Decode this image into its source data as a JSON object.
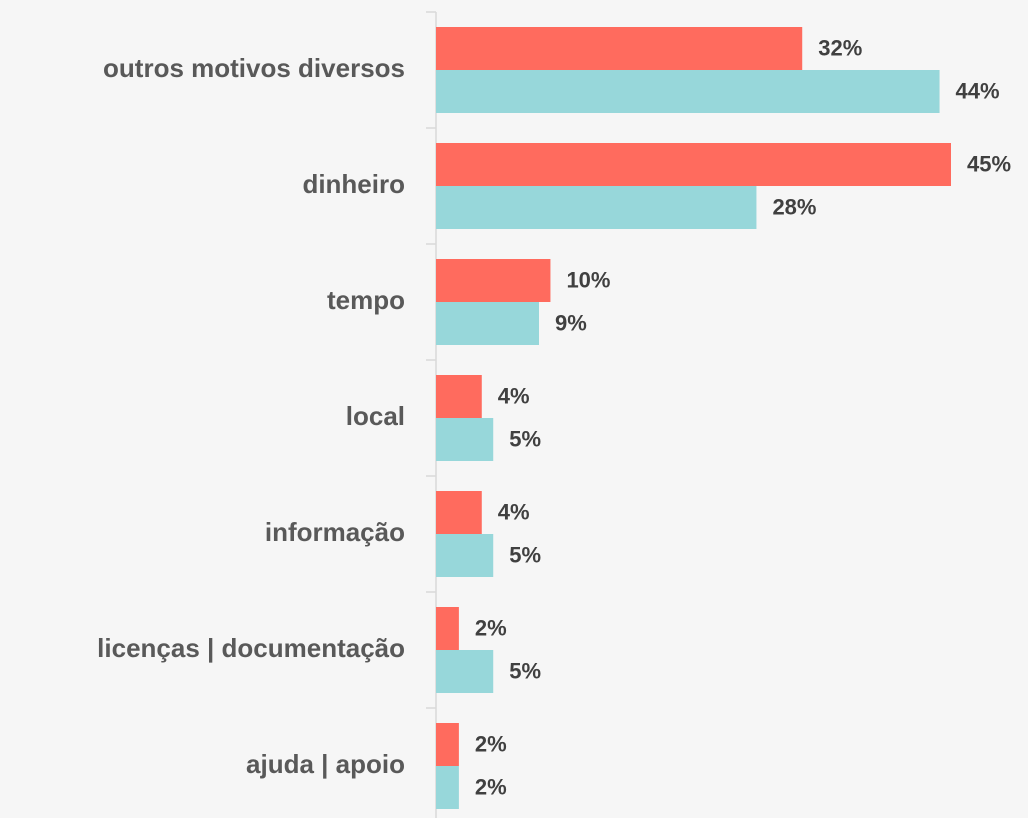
{
  "chart_data": {
    "type": "bar",
    "orientation": "horizontal",
    "categories": [
      "outros motivos diversos",
      "dinheiro",
      "tempo",
      "local",
      "informação",
      "licenças | documentação",
      "ajuda | apoio"
    ],
    "series": [
      {
        "color": "#ff6b5e",
        "values": [
          32,
          45,
          10,
          4,
          4,
          2,
          2
        ],
        "value_labels": [
          "32%",
          "45%",
          "10%",
          "4%",
          "4%",
          "2%",
          "2%"
        ]
      },
      {
        "color": "#97d7da",
        "values": [
          44,
          28,
          9,
          5,
          5,
          5,
          2
        ],
        "value_labels": [
          "44%",
          "28%",
          "9%",
          "5%",
          "5%",
          "5%",
          "2%"
        ]
      }
    ]
  }
}
